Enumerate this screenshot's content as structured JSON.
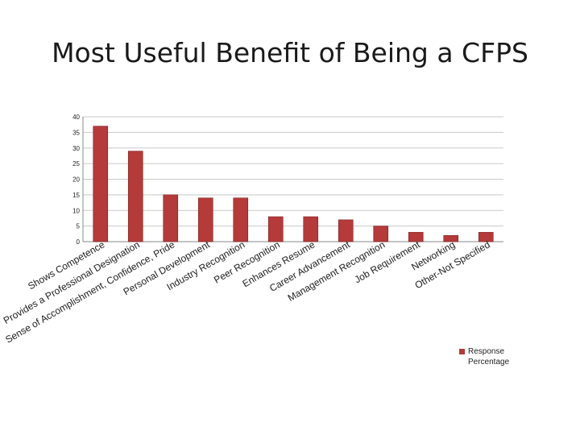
{
  "slide": {
    "title": "Most Useful Benefit  of Being a CFPS"
  },
  "colors": {
    "bar": "#b53a3a",
    "bar_edge": "#7e2222",
    "grid": "#c9c9c9",
    "axis": "#8a8a8a",
    "text": "#222222"
  },
  "chart_data": {
    "type": "bar",
    "title": "Most Useful Benefit  of Being a CFPS",
    "xlabel": "",
    "ylabel": "",
    "ylim": [
      0,
      40
    ],
    "yticks": [
      0,
      5,
      10,
      15,
      20,
      25,
      30,
      35,
      40
    ],
    "grid": true,
    "legend_position": "bottom-right",
    "categories": [
      "Shows Competence",
      "Provides a Professional Designation",
      "Sense of Accomplishment, Confidence, Pride",
      "Personal Development",
      "Industry Recognition",
      "Peer Recognition",
      "Enhances Resume",
      "Career Advancement",
      "Management Recognition",
      "Job Requirement",
      "Networking",
      "Other-Not Specified"
    ],
    "series": [
      {
        "name": "Response Percentage",
        "values": [
          37,
          29,
          15,
          14,
          14,
          8,
          8,
          7,
          5,
          3,
          2,
          3
        ]
      }
    ]
  }
}
